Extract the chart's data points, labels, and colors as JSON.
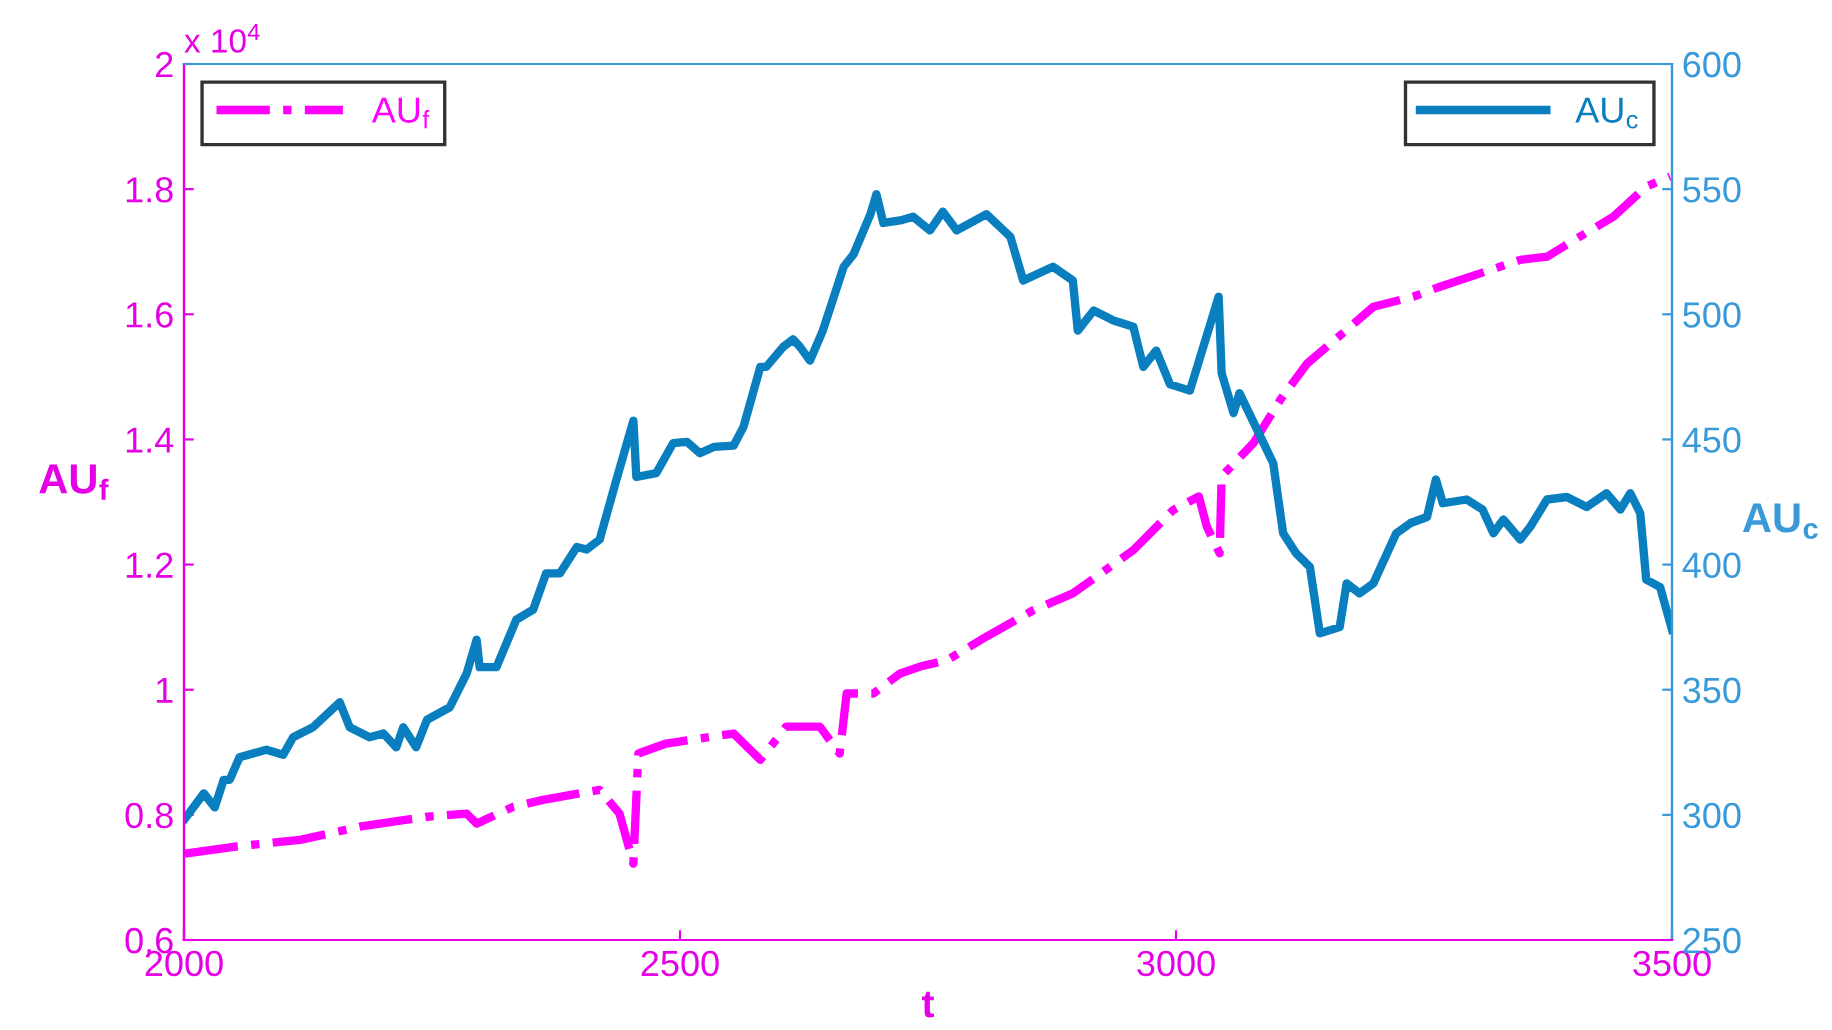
{
  "chart_data": {
    "type": "line",
    "xlabel": "t",
    "ylabel": "AU$_{f}$",
    "y2label": "AU$_{c}$",
    "annotations": [
      "x 10$^{4}$"
    ],
    "xlim": [
      2000,
      3500
    ],
    "xticks": [
      2000,
      2500,
      3000,
      3500
    ],
    "ylim": [
      0.6,
      2
    ],
    "yticks": [
      0.6,
      0.8,
      1,
      1.2,
      1.4,
      1.6,
      1.8,
      2
    ],
    "y2lim": [
      250,
      600
    ],
    "y2ticks": [
      250,
      300,
      350,
      400,
      450,
      500,
      550,
      600
    ],
    "grid": false,
    "legend": "top",
    "marker": "none",
    "series": [
      {
        "name": "AU$_{f}$",
        "color": "#ff00ff",
        "line_style": "dashdot",
        "x": [
          2001,
          2050,
          2117,
          2177,
          2245,
          2285,
          2295,
          2332,
          2362,
          2419,
          2439,
          2453,
          2458,
          2486,
          2554,
          2581,
          2607,
          2641,
          2661,
          2668,
          2695,
          2722,
          2742,
          2769,
          2809,
          2856,
          2896,
          2957,
          2997,
          3023,
          3031,
          3044,
          3046,
          3078,
          3105,
          3132,
          3172,
          3199,
          3239,
          3266,
          3306,
          3347,
          3374,
          3407,
          3441,
          3474,
          3498
        ],
        "values": [
          0.738,
          0.749,
          0.76,
          0.781,
          0.797,
          0.802,
          0.786,
          0.813,
          0.824,
          0.84,
          0.802,
          0.722,
          0.898,
          0.914,
          0.93,
          0.888,
          0.941,
          0.941,
          0.898,
          0.994,
          0.994,
          1.026,
          1.037,
          1.047,
          1.085,
          1.127,
          1.154,
          1.223,
          1.287,
          1.309,
          1.261,
          1.218,
          1.341,
          1.394,
          1.463,
          1.521,
          1.575,
          1.612,
          1.628,
          1.644,
          1.665,
          1.687,
          1.692,
          1.724,
          1.756,
          1.804,
          1.82
        ]
      },
      {
        "name": "AU$_{c}$",
        "color": "#0a7fc0",
        "line_style": "solid",
        "axis": "y2",
        "x": [
          2001,
          2020,
          2031,
          2040,
          2046,
          2056,
          2083,
          2100,
          2110,
          2130,
          2157,
          2167,
          2187,
          2201,
          2214,
          2221,
          2234,
          2245,
          2268,
          2285,
          2295,
          2298,
          2315,
          2335,
          2352,
          2365,
          2379,
          2396,
          2406,
          2419,
          2436,
          2453,
          2456,
          2476,
          2493,
          2507,
          2520,
          2534,
          2554,
          2564,
          2581,
          2587,
          2604,
          2614,
          2621,
          2631,
          2644,
          2665,
          2675,
          2692,
          2698,
          2705,
          2722,
          2735,
          2752,
          2765,
          2779,
          2809,
          2833,
          2846,
          2876,
          2896,
          2901,
          2917,
          2937,
          2957,
          2967,
          2980,
          2994,
          3014,
          3043,
          3046,
          3058,
          3064,
          3098,
          3108,
          3121,
          3135,
          3145,
          3165,
          3172,
          3185,
          3199,
          3222,
          3236,
          3253,
          3262,
          3269,
          3293,
          3309,
          3320,
          3330,
          3347,
          3357,
          3374,
          3394,
          3414,
          3434,
          3448,
          3458,
          3468,
          3474,
          3488,
          3500
        ],
        "values": [
          298.5,
          308.6,
          303,
          314,
          314,
          323,
          326,
          324,
          331,
          335,
          345,
          335,
          331,
          332.5,
          327,
          335,
          327,
          338,
          343,
          356.5,
          370,
          359,
          359,
          378,
          382,
          396.5,
          396.5,
          407,
          406,
          410,
          434,
          457.5,
          435,
          436.5,
          448.5,
          449,
          444.5,
          447,
          447.5,
          455,
          479,
          479,
          487,
          490,
          487,
          481.5,
          493.5,
          519,
          524,
          540,
          548,
          536.5,
          537.5,
          539,
          533.5,
          541,
          533.5,
          540,
          531,
          513.5,
          519,
          513.5,
          493.5,
          501.5,
          497.5,
          495,
          479,
          485.5,
          472,
          469.5,
          507,
          476.5,
          460.5,
          468.5,
          440.5,
          412.5,
          404.5,
          399,
          372.5,
          375,
          392.5,
          388.5,
          392.5,
          412.5,
          416.5,
          419,
          434,
          424.5,
          426,
          422,
          412.5,
          418,
          410,
          415,
          426,
          427,
          423,
          428.5,
          422,
          428.5,
          420.5,
          394,
          391,
          374
        ]
      }
    ]
  }
}
